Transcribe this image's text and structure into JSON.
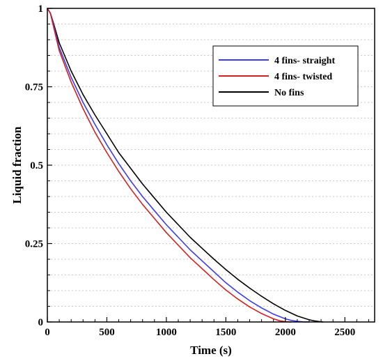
{
  "chart_data": {
    "type": "line",
    "title": "",
    "xlabel": "Time (s)",
    "ylabel": "Liquid fraction",
    "xlim": [
      0,
      2750
    ],
    "ylim": [
      0,
      1
    ],
    "x_ticks": [
      0,
      500,
      1000,
      1500,
      2000,
      2500
    ],
    "x_tick_labels": [
      "0",
      "500",
      "1000",
      "1500",
      "2000",
      "2500"
    ],
    "y_ticks": [
      0,
      0.25,
      0.5,
      0.75,
      1
    ],
    "y_tick_labels": [
      "0",
      "0.25",
      "0.5",
      "0.75",
      "1"
    ],
    "grid": "horizontal dashed",
    "legend_position": "top-right",
    "series": [
      {
        "name": "4 fins- straight",
        "color": "#3b3bf0",
        "x": [
          0,
          25,
          50,
          100,
          200,
          300,
          400,
          500,
          600,
          700,
          800,
          900,
          1000,
          1100,
          1200,
          1300,
          1400,
          1500,
          1600,
          1700,
          1800,
          1900,
          2000,
          2050,
          2100,
          2150,
          2200
        ],
        "y": [
          1.0,
          0.985,
          0.95,
          0.875,
          0.78,
          0.7,
          0.63,
          0.565,
          0.505,
          0.45,
          0.4,
          0.355,
          0.31,
          0.27,
          0.23,
          0.195,
          0.16,
          0.125,
          0.095,
          0.068,
          0.045,
          0.025,
          0.01,
          0.005,
          0.002,
          0.0005,
          0
        ]
      },
      {
        "name": "4 fins- twisted",
        "color": "#d42020",
        "x": [
          0,
          25,
          50,
          100,
          200,
          300,
          400,
          500,
          600,
          700,
          800,
          900,
          1000,
          1100,
          1200,
          1300,
          1400,
          1500,
          1600,
          1700,
          1800,
          1900,
          1950,
          2000,
          2050
        ],
        "y": [
          1.0,
          0.985,
          0.945,
          0.865,
          0.765,
          0.68,
          0.605,
          0.54,
          0.48,
          0.425,
          0.375,
          0.33,
          0.285,
          0.245,
          0.205,
          0.17,
          0.135,
          0.102,
          0.073,
          0.048,
          0.027,
          0.01,
          0.004,
          0.001,
          0
        ]
      },
      {
        "name": "No fins",
        "color": "#000000",
        "x": [
          0,
          25,
          50,
          100,
          200,
          300,
          400,
          500,
          600,
          700,
          800,
          900,
          1000,
          1100,
          1200,
          1300,
          1400,
          1500,
          1600,
          1700,
          1800,
          1900,
          2000,
          2100,
          2200,
          2250,
          2300,
          2320
        ],
        "y": [
          1.0,
          0.985,
          0.955,
          0.89,
          0.8,
          0.725,
          0.66,
          0.6,
          0.54,
          0.49,
          0.44,
          0.395,
          0.35,
          0.31,
          0.27,
          0.235,
          0.2,
          0.167,
          0.136,
          0.108,
          0.082,
          0.058,
          0.037,
          0.019,
          0.007,
          0.003,
          0.0005,
          0
        ]
      }
    ]
  }
}
